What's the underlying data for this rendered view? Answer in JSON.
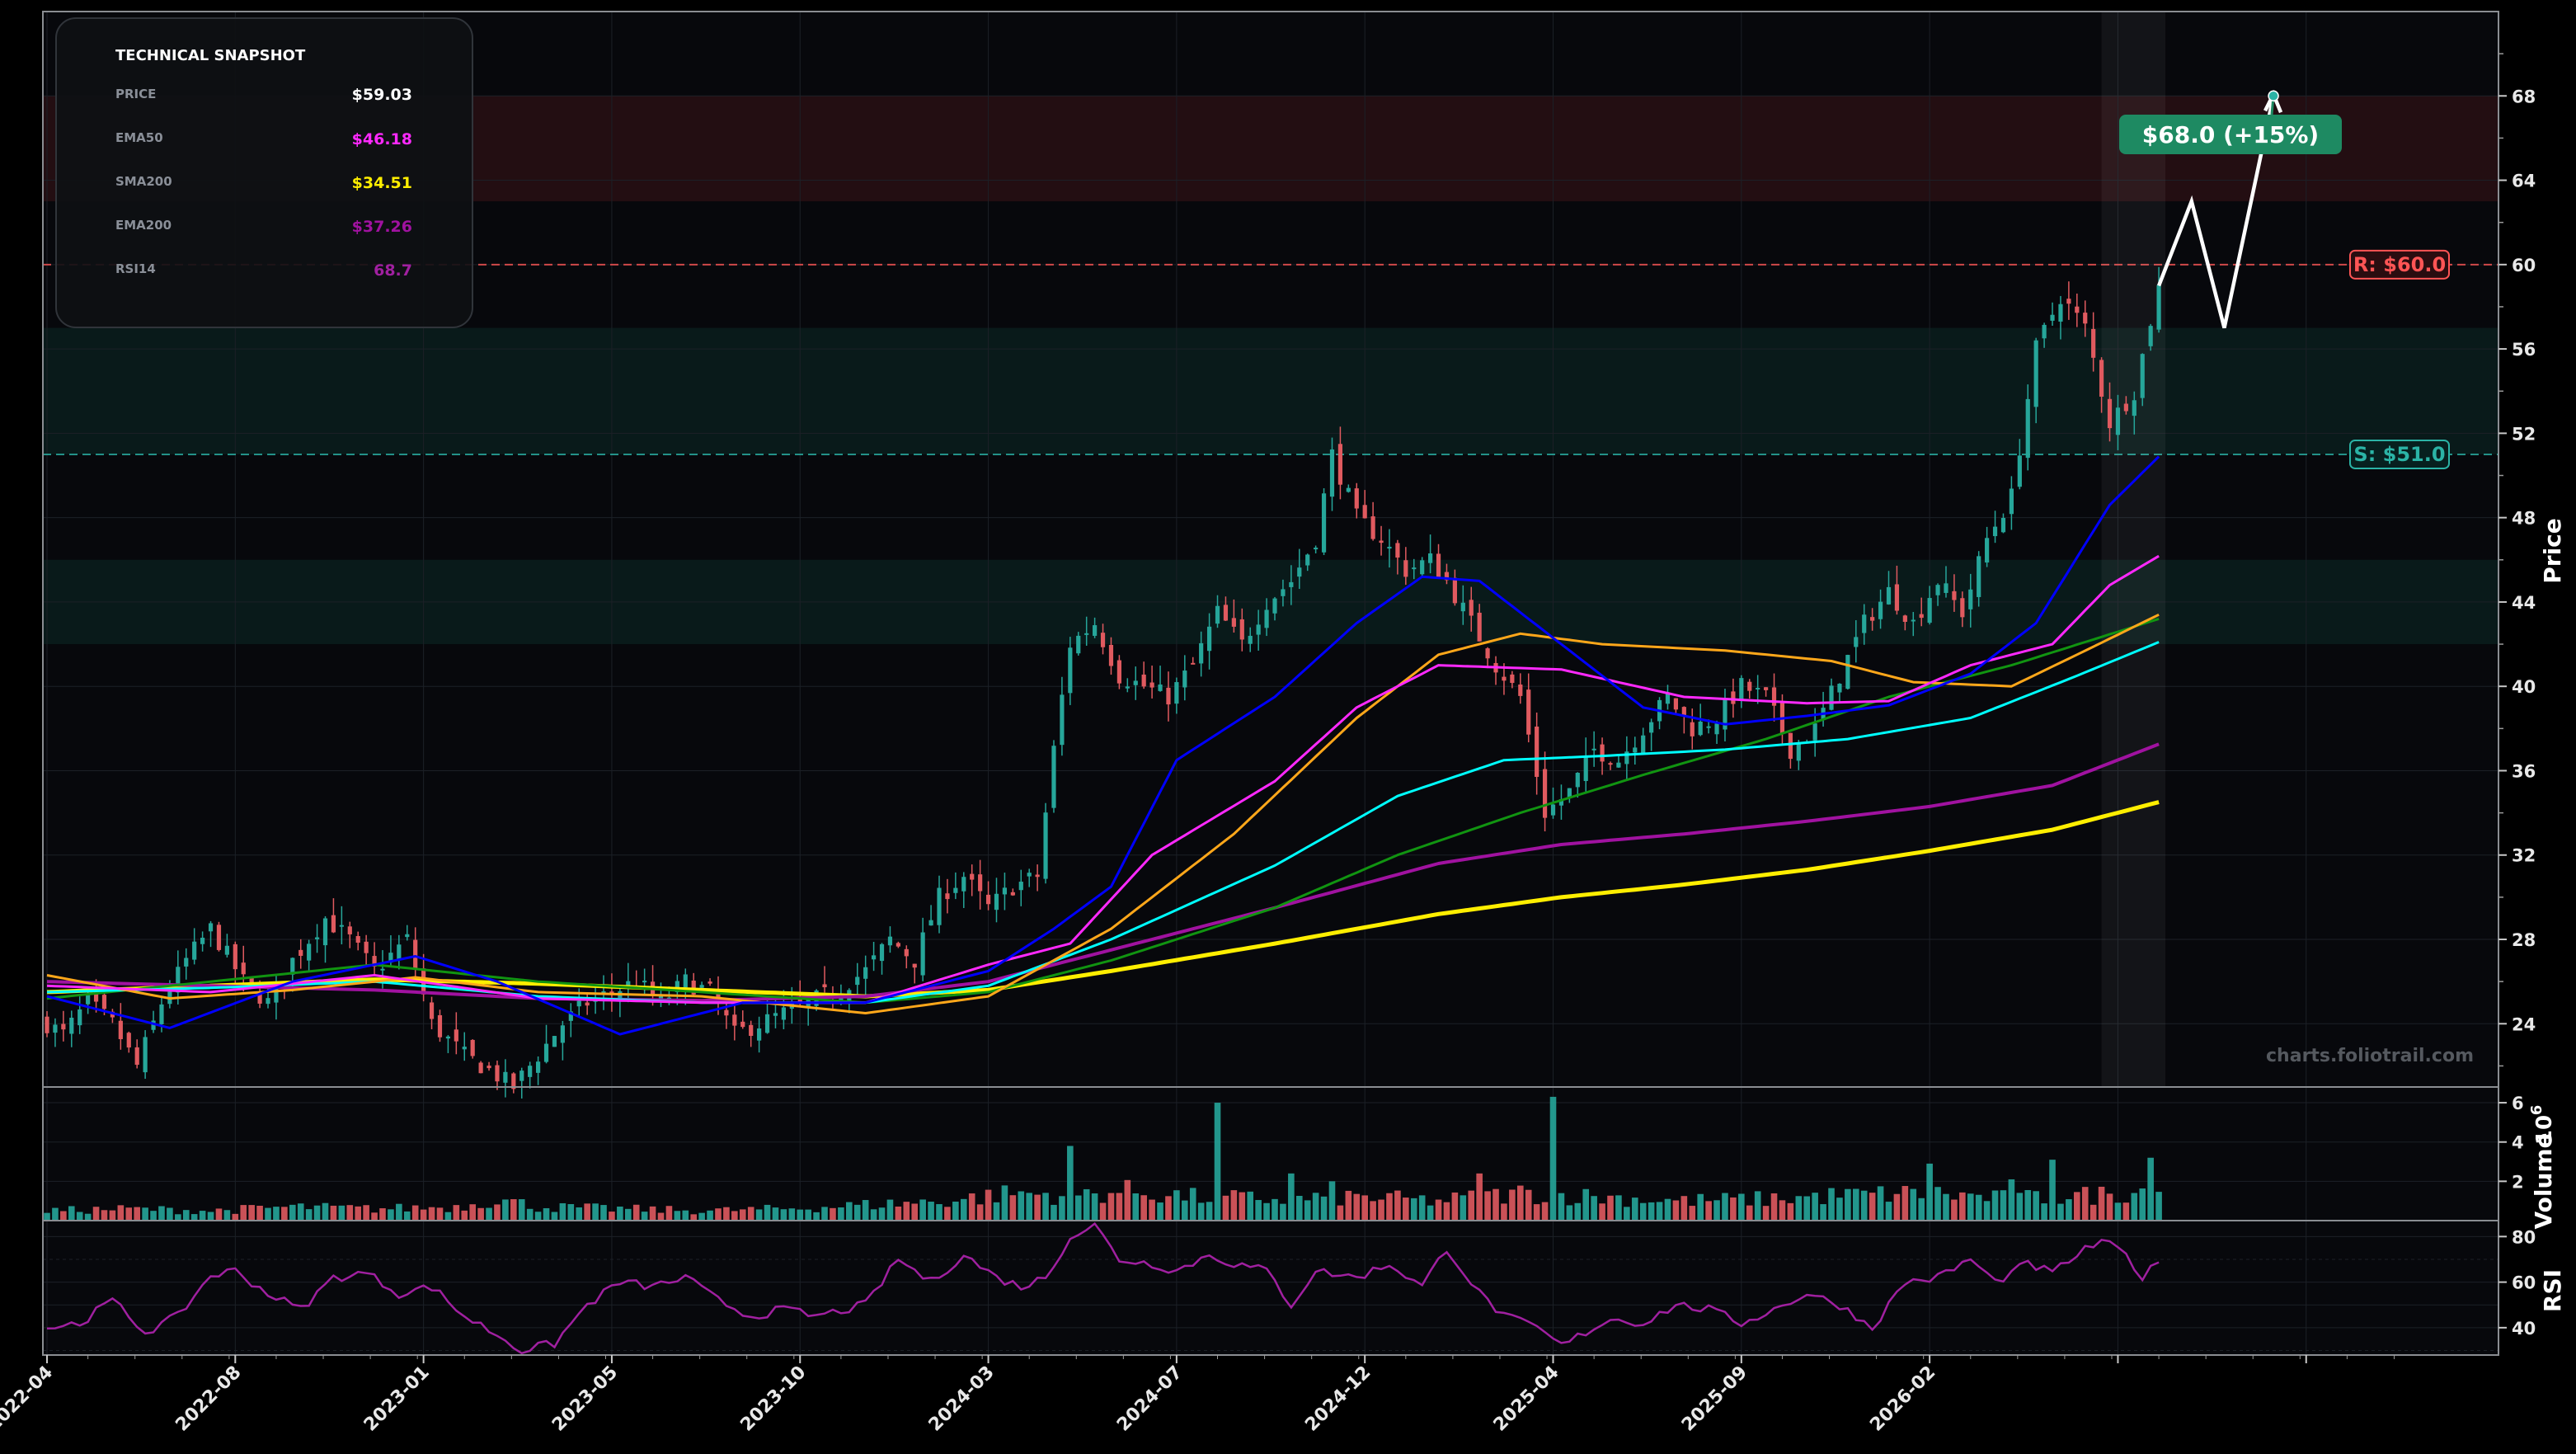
{
  "colors": {
    "background": "#000000",
    "panel_bg": "#07080c",
    "grid": "#1c2027",
    "axis_text": "#e8e8e8",
    "up": "#26a69a",
    "down": "#e05a5f",
    "ema20": "#0000ff",
    "ema50": "#ff29ff",
    "sma50": "#ffa71a",
    "ema100": "#00ffff",
    "sma100": "#119411",
    "ema200": "#a012a0",
    "sma200": "#ffee00",
    "rsi": "#a020a0",
    "resistance": "#ff5555",
    "support": "#2bb3a6",
    "projection": "#ffffff",
    "target": "#1e8a62"
  },
  "snapshot": {
    "title": "TECHNICAL SNAPSHOT",
    "rows": [
      {
        "label": "PRICE",
        "value": "$59.03",
        "color": "#ffffff"
      },
      {
        "label": "EMA50",
        "value": "$46.18",
        "color": "#ff29ff"
      },
      {
        "label": "SMA200",
        "value": "$34.51",
        "color": "#ffee00"
      },
      {
        "label": "EMA200",
        "value": "$37.26",
        "color": "#a012a0"
      },
      {
        "label": "RSI14",
        "value": "68.7",
        "color": "#a020a0"
      }
    ]
  },
  "watermark": "charts.foliotrail.com",
  "chart_data": {
    "type": "candlestick",
    "price_axis": {
      "label": "Price",
      "ylim": [
        21,
        72
      ],
      "ticks": [
        24,
        28,
        32,
        36,
        40,
        44,
        48,
        52,
        56,
        60,
        64,
        68
      ]
    },
    "volume_axis": {
      "label": "Volume",
      "exponent_label": "10",
      "exponent": "6",
      "ylim": [
        0,
        6.8
      ],
      "ticks": [
        2,
        4,
        6
      ]
    },
    "rsi_axis": {
      "label": "RSI",
      "ylim": [
        28,
        87
      ],
      "ticks": [
        40,
        60,
        80
      ]
    },
    "x_axis": {
      "tick_labels": [
        "2022-04",
        "2022-08",
        "2023-01",
        "2023-05",
        "2023-10",
        "2024-03",
        "2024-07",
        "2024-12",
        "2025-04",
        "2025-09",
        "2026-02"
      ]
    },
    "levels": {
      "resistance": {
        "value": 60.0,
        "label": "R: $60.0"
      },
      "support": {
        "value": 51.0,
        "label": "S: $51.0"
      }
    },
    "zones": [
      {
        "kind": "resistance",
        "from": 63,
        "to": 68
      },
      {
        "kind": "support",
        "from": 51,
        "to": 57
      },
      {
        "kind": "support",
        "from": 42,
        "to": 46
      }
    ],
    "target": {
      "value": 68.0,
      "label": "$68.0 (+15%)"
    },
    "projection_path": [
      59.0,
      63.0,
      57.0,
      68.0
    ],
    "price_anchors": [
      [
        0,
        24
      ],
      [
        2,
        23.5
      ],
      [
        5,
        25
      ],
      [
        8,
        24
      ],
      [
        11,
        22
      ],
      [
        14,
        25
      ],
      [
        17,
        27
      ],
      [
        20,
        28.5
      ],
      [
        24,
        26
      ],
      [
        27,
        25
      ],
      [
        30,
        27
      ],
      [
        34,
        29
      ],
      [
        37,
        28
      ],
      [
        40,
        26.5
      ],
      [
        44,
        28
      ],
      [
        47,
        24
      ],
      [
        51,
        22.5
      ],
      [
        54,
        21.8
      ],
      [
        57,
        21
      ],
      [
        60,
        22.5
      ],
      [
        63,
        24
      ],
      [
        66,
        25
      ],
      [
        69,
        25.5
      ],
      [
        72,
        26
      ],
      [
        75,
        25
      ],
      [
        78,
        26
      ],
      [
        81,
        25.5
      ],
      [
        84,
        23.5
      ],
      [
        87,
        24
      ],
      [
        90,
        24.5
      ],
      [
        93,
        25
      ],
      [
        96,
        25.5
      ],
      [
        100,
        26.5
      ],
      [
        103,
        28
      ],
      [
        106,
        27
      ],
      [
        109,
        30
      ],
      [
        112,
        31
      ],
      [
        115,
        29.5
      ],
      [
        118,
        30.5
      ],
      [
        121,
        31
      ],
      [
        123,
        37
      ],
      [
        125,
        42
      ],
      [
        128,
        43
      ],
      [
        131,
        40.5
      ],
      [
        134,
        40
      ],
      [
        137,
        39.5
      ],
      [
        140,
        41
      ],
      [
        143,
        43.5
      ],
      [
        146,
        42
      ],
      [
        149,
        44
      ],
      [
        152,
        45
      ],
      [
        155,
        47
      ],
      [
        157,
        51
      ],
      [
        160,
        48
      ],
      [
        163,
        47
      ],
      [
        166,
        45.5
      ],
      [
        169,
        46
      ],
      [
        171,
        45
      ],
      [
        174,
        43
      ],
      [
        177,
        41
      ],
      [
        180,
        39.5
      ],
      [
        183,
        34
      ],
      [
        186,
        35
      ],
      [
        189,
        37
      ],
      [
        192,
        36.5
      ],
      [
        195,
        38
      ],
      [
        198,
        39.5
      ],
      [
        201,
        38
      ],
      [
        204,
        38.5
      ],
      [
        207,
        40
      ],
      [
        210,
        39.5
      ],
      [
        213,
        37
      ],
      [
        216,
        38
      ],
      [
        219,
        40.5
      ],
      [
        222,
        43
      ],
      [
        225,
        44.5
      ],
      [
        228,
        43
      ],
      [
        231,
        45
      ],
      [
        234,
        43.5
      ],
      [
        237,
        47
      ],
      [
        240,
        49
      ],
      [
        243,
        56
      ],
      [
        246,
        58.5
      ],
      [
        249,
        57
      ],
      [
        252,
        52.5
      ],
      [
        255,
        54
      ],
      [
        258,
        59.03
      ]
    ],
    "volume_anchors": [
      [
        0,
        0.5
      ],
      [
        10,
        0.6
      ],
      [
        20,
        0.5
      ],
      [
        30,
        0.7
      ],
      [
        40,
        0.6
      ],
      [
        50,
        0.7
      ],
      [
        55,
        1.1
      ],
      [
        60,
        0.7
      ],
      [
        70,
        0.6
      ],
      [
        80,
        0.5
      ],
      [
        90,
        0.6
      ],
      [
        100,
        0.8
      ],
      [
        110,
        1.0
      ],
      [
        118,
        1.4
      ],
      [
        125,
        1.3
      ],
      [
        132,
        1.5
      ],
      [
        140,
        1.2
      ],
      [
        150,
        1.1
      ],
      [
        160,
        1.2
      ],
      [
        170,
        1.0
      ],
      [
        180,
        1.4
      ],
      [
        190,
        1.2
      ],
      [
        200,
        1.0
      ],
      [
        210,
        1.1
      ],
      [
        220,
        1.3
      ],
      [
        230,
        1.4
      ],
      [
        240,
        1.1
      ],
      [
        250,
        1.3
      ],
      [
        258,
        1.6
      ]
    ],
    "volume_spikes": [
      [
        125,
        3.8
      ],
      [
        143,
        6.0
      ],
      [
        152,
        2.4
      ],
      [
        157,
        2.0
      ],
      [
        175,
        2.4
      ],
      [
        184,
        6.3
      ],
      [
        230,
        2.9
      ],
      [
        240,
        2.1
      ],
      [
        245,
        3.1
      ],
      [
        257,
        3.2
      ]
    ],
    "rsi_anchors": [
      [
        0,
        40
      ],
      [
        4,
        42
      ],
      [
        8,
        52
      ],
      [
        12,
        38
      ],
      [
        16,
        45
      ],
      [
        20,
        63
      ],
      [
        23,
        65
      ],
      [
        27,
        55
      ],
      [
        31,
        48
      ],
      [
        35,
        62
      ],
      [
        39,
        64
      ],
      [
        43,
        55
      ],
      [
        47,
        58
      ],
      [
        51,
        45
      ],
      [
        55,
        37
      ],
      [
        58,
        30
      ],
      [
        62,
        33
      ],
      [
        66,
        50
      ],
      [
        70,
        60
      ],
      [
        74,
        58
      ],
      [
        78,
        62
      ],
      [
        82,
        52
      ],
      [
        86,
        45
      ],
      [
        90,
        48
      ],
      [
        94,
        45
      ],
      [
        100,
        50
      ],
      [
        104,
        70
      ],
      [
        108,
        60
      ],
      [
        112,
        72
      ],
      [
        116,
        62
      ],
      [
        119,
        58
      ],
      [
        122,
        62
      ],
      [
        125,
        80
      ],
      [
        128,
        85
      ],
      [
        131,
        70
      ],
      [
        135,
        68
      ],
      [
        138,
        65
      ],
      [
        142,
        72
      ],
      [
        145,
        68
      ],
      [
        149,
        65
      ],
      [
        152,
        50
      ],
      [
        155,
        65
      ],
      [
        160,
        62
      ],
      [
        164,
        68
      ],
      [
        168,
        58
      ],
      [
        171,
        75
      ],
      [
        175,
        55
      ],
      [
        178,
        45
      ],
      [
        182,
        40
      ],
      [
        185,
        32
      ],
      [
        188,
        38
      ],
      [
        191,
        44
      ],
      [
        195,
        42
      ],
      [
        199,
        50
      ],
      [
        203,
        48
      ],
      [
        207,
        42
      ],
      [
        211,
        48
      ],
      [
        215,
        55
      ],
      [
        219,
        50
      ],
      [
        223,
        40
      ],
      [
        227,
        60
      ],
      [
        231,
        62
      ],
      [
        235,
        70
      ],
      [
        238,
        60
      ],
      [
        242,
        68
      ],
      [
        245,
        64
      ],
      [
        248,
        72
      ],
      [
        251,
        78
      ],
      [
        254,
        72
      ],
      [
        256,
        62
      ],
      [
        258,
        68.7
      ]
    ],
    "moving_averages": [
      {
        "key": "sma200",
        "color": "#ffee00",
        "width": 5,
        "points": [
          [
            0,
            25.5
          ],
          [
            20,
            25.8
          ],
          [
            40,
            26.1
          ],
          [
            60,
            25.9
          ],
          [
            80,
            25.6
          ],
          [
            100,
            25.3
          ],
          [
            115,
            25.6
          ],
          [
            130,
            26.5
          ],
          [
            150,
            27.8
          ],
          [
            170,
            29.2
          ],
          [
            185,
            30
          ],
          [
            200,
            30.6
          ],
          [
            215,
            31.3
          ],
          [
            230,
            32.2
          ],
          [
            245,
            33.2
          ],
          [
            258,
            34.51
          ]
        ]
      },
      {
        "key": "ema200",
        "color": "#a012a0",
        "width": 4,
        "points": [
          [
            0,
            26
          ],
          [
            20,
            25.8
          ],
          [
            40,
            25.6
          ],
          [
            60,
            25.2
          ],
          [
            80,
            25.1
          ],
          [
            100,
            25.3
          ],
          [
            115,
            26
          ],
          [
            130,
            27.5
          ],
          [
            150,
            29.5
          ],
          [
            170,
            31.6
          ],
          [
            185,
            32.5
          ],
          [
            200,
            33
          ],
          [
            215,
            33.6
          ],
          [
            230,
            34.3
          ],
          [
            245,
            35.3
          ],
          [
            258,
            37.26
          ]
        ]
      },
      {
        "key": "sma100",
        "color": "#119411",
        "width": 3,
        "points": [
          [
            0,
            25.2
          ],
          [
            20,
            26
          ],
          [
            40,
            26.8
          ],
          [
            60,
            26
          ],
          [
            80,
            25.5
          ],
          [
            100,
            25
          ],
          [
            115,
            25.5
          ],
          [
            130,
            27
          ],
          [
            150,
            29.5
          ],
          [
            165,
            32
          ],
          [
            180,
            34
          ],
          [
            195,
            35.8
          ],
          [
            210,
            37.5
          ],
          [
            225,
            39.5
          ],
          [
            240,
            41
          ],
          [
            258,
            43.2
          ]
        ]
      },
      {
        "key": "ema100",
        "color": "#00ffff",
        "width": 3,
        "points": [
          [
            0,
            25.5
          ],
          [
            20,
            25.7
          ],
          [
            40,
            26
          ],
          [
            60,
            25.3
          ],
          [
            80,
            25
          ],
          [
            100,
            25
          ],
          [
            115,
            25.8
          ],
          [
            130,
            28
          ],
          [
            150,
            31.5
          ],
          [
            165,
            34.8
          ],
          [
            178,
            36.5
          ],
          [
            190,
            36.7
          ],
          [
            205,
            37
          ],
          [
            220,
            37.5
          ],
          [
            235,
            38.5
          ],
          [
            248,
            40.5
          ],
          [
            258,
            42.1
          ]
        ]
      },
      {
        "key": "sma50",
        "color": "#ffa71a",
        "width": 3,
        "points": [
          [
            0,
            26.3
          ],
          [
            15,
            25.2
          ],
          [
            30,
            25.6
          ],
          [
            45,
            26.2
          ],
          [
            60,
            25.5
          ],
          [
            80,
            25.3
          ],
          [
            100,
            24.5
          ],
          [
            115,
            25.3
          ],
          [
            130,
            28.5
          ],
          [
            145,
            33
          ],
          [
            160,
            38.5
          ],
          [
            170,
            41.5
          ],
          [
            180,
            42.5
          ],
          [
            190,
            42
          ],
          [
            205,
            41.7
          ],
          [
            218,
            41.2
          ],
          [
            228,
            40.2
          ],
          [
            240,
            40
          ],
          [
            248,
            41.5
          ],
          [
            258,
            43.4
          ]
        ]
      },
      {
        "key": "ema50",
        "color": "#ff29ff",
        "width": 3,
        "points": [
          [
            0,
            25.8
          ],
          [
            20,
            25.5
          ],
          [
            40,
            26.3
          ],
          [
            60,
            25.2
          ],
          [
            80,
            25
          ],
          [
            100,
            25
          ],
          [
            115,
            26.8
          ],
          [
            125,
            27.8
          ],
          [
            135,
            32
          ],
          [
            150,
            35.5
          ],
          [
            160,
            39
          ],
          [
            170,
            41
          ],
          [
            185,
            40.8
          ],
          [
            200,
            39.5
          ],
          [
            215,
            39.2
          ],
          [
            225,
            39.3
          ],
          [
            235,
            41
          ],
          [
            245,
            42
          ],
          [
            252,
            44.8
          ],
          [
            258,
            46.18
          ]
        ]
      },
      {
        "key": "ema20",
        "color": "#0000ff",
        "width": 3,
        "points": [
          [
            0,
            25.3
          ],
          [
            15,
            23.8
          ],
          [
            30,
            26
          ],
          [
            45,
            27.2
          ],
          [
            55,
            26
          ],
          [
            70,
            23.5
          ],
          [
            85,
            25
          ],
          [
            100,
            25
          ],
          [
            115,
            26.5
          ],
          [
            123,
            28.5
          ],
          [
            130,
            30.5
          ],
          [
            138,
            36.5
          ],
          [
            150,
            39.5
          ],
          [
            160,
            43
          ],
          [
            168,
            45.2
          ],
          [
            175,
            45
          ],
          [
            185,
            42
          ],
          [
            195,
            39
          ],
          [
            205,
            38.2
          ],
          [
            215,
            38.6
          ],
          [
            225,
            39.1
          ],
          [
            235,
            40.6
          ],
          [
            243,
            43
          ],
          [
            252,
            48.6
          ],
          [
            258,
            50.9
          ]
        ]
      }
    ]
  }
}
